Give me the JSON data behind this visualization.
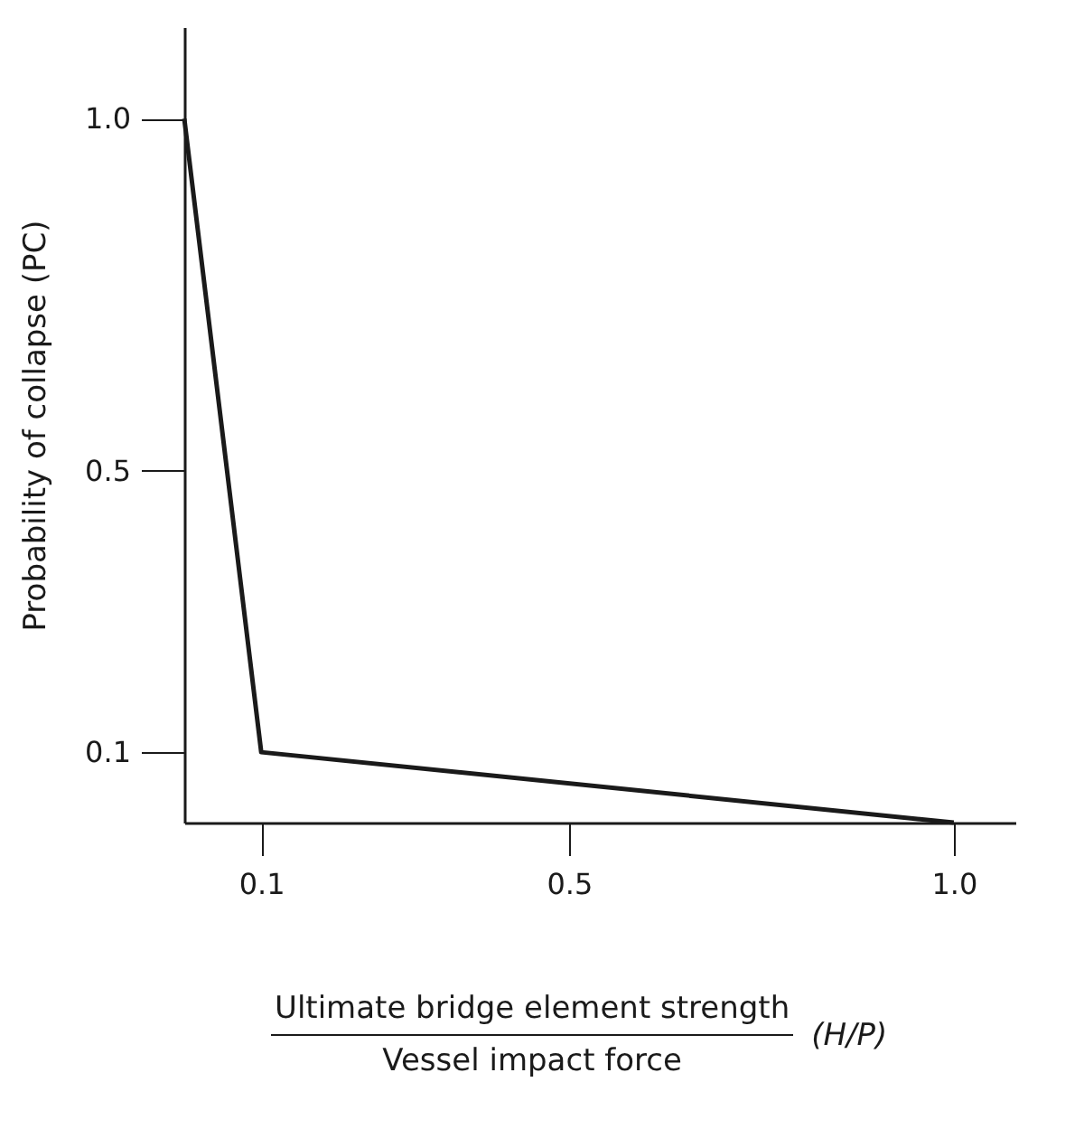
{
  "chart_data": {
    "type": "line",
    "xlabel": "Ultimate bridge element strength\nVessel impact force",
    "ylabel": "Probability of collapse (PC)",
    "annotations": [
      "(H/P)"
    ],
    "x": [
      0,
      0.1,
      1.0
    ],
    "series": [
      {
        "color": "#1a1a1a",
        "values": [
          1.0,
          0.1,
          0
        ]
      }
    ],
    "xlim": [
      0,
      1.08
    ],
    "ylim": [
      0,
      1.13
    ],
    "xticks": [
      0.1,
      0.5,
      {
        "value": 1,
        "label": "1.0"
      }
    ],
    "yticks": [
      0.1,
      0.5,
      {
        "value": 1,
        "label": "1.0"
      }
    ],
    "grid": false,
    "legend": false,
    "marker": "none",
    "line_style": "solid"
  }
}
